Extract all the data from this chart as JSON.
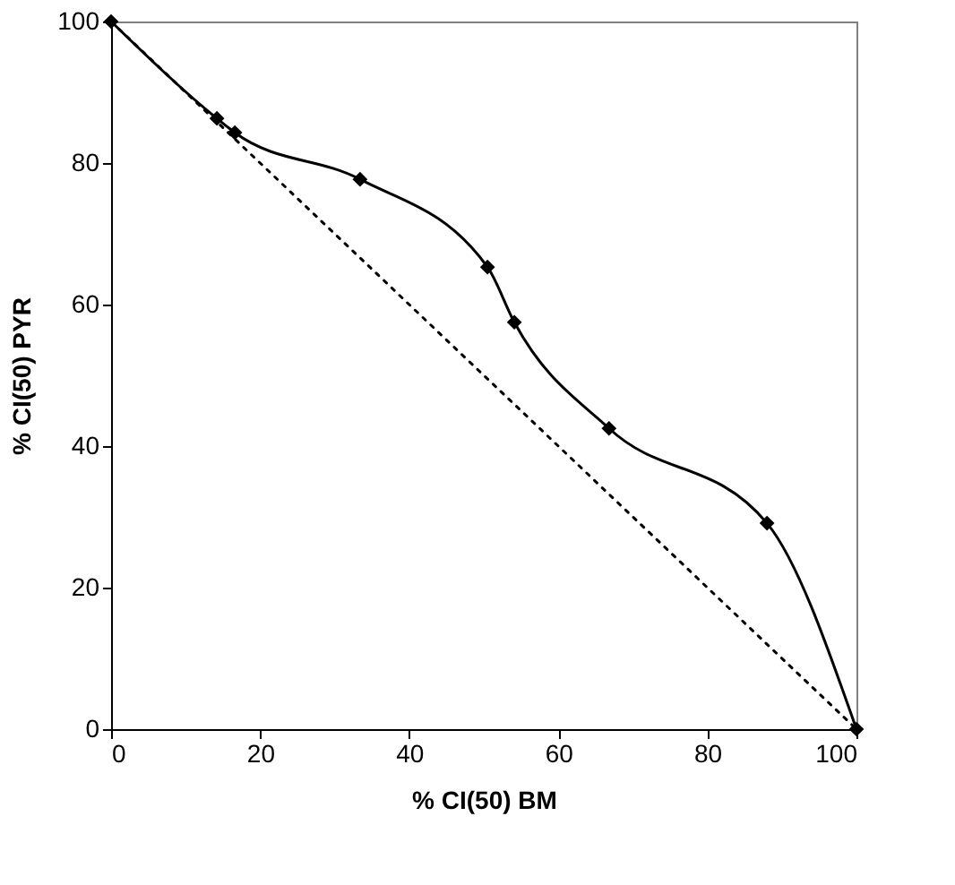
{
  "chart_data": {
    "type": "line",
    "xlabel": "% CI(50) BM",
    "ylabel": "% CI(50) PYR",
    "xlim": [
      0,
      100
    ],
    "ylim": [
      0,
      100
    ],
    "xticks": [
      0,
      20,
      40,
      60,
      80,
      100
    ],
    "yticks": [
      0,
      20,
      40,
      60,
      80,
      100
    ],
    "grid": false,
    "series": [
      {
        "color": "#000000",
        "marker": "diamond",
        "line_style": "solid",
        "x": [
          0,
          14.2,
          16.6,
          33.4,
          50.5,
          54.1,
          66.8,
          88.0,
          100
        ],
        "values": [
          100,
          86.3,
          84.3,
          77.7,
          65.3,
          57.5,
          42.5,
          29.1,
          0
        ]
      },
      {
        "color": "#000000",
        "marker": "none",
        "line_style": "dotted",
        "x": [
          0,
          100
        ],
        "values": [
          100,
          0
        ]
      }
    ]
  }
}
